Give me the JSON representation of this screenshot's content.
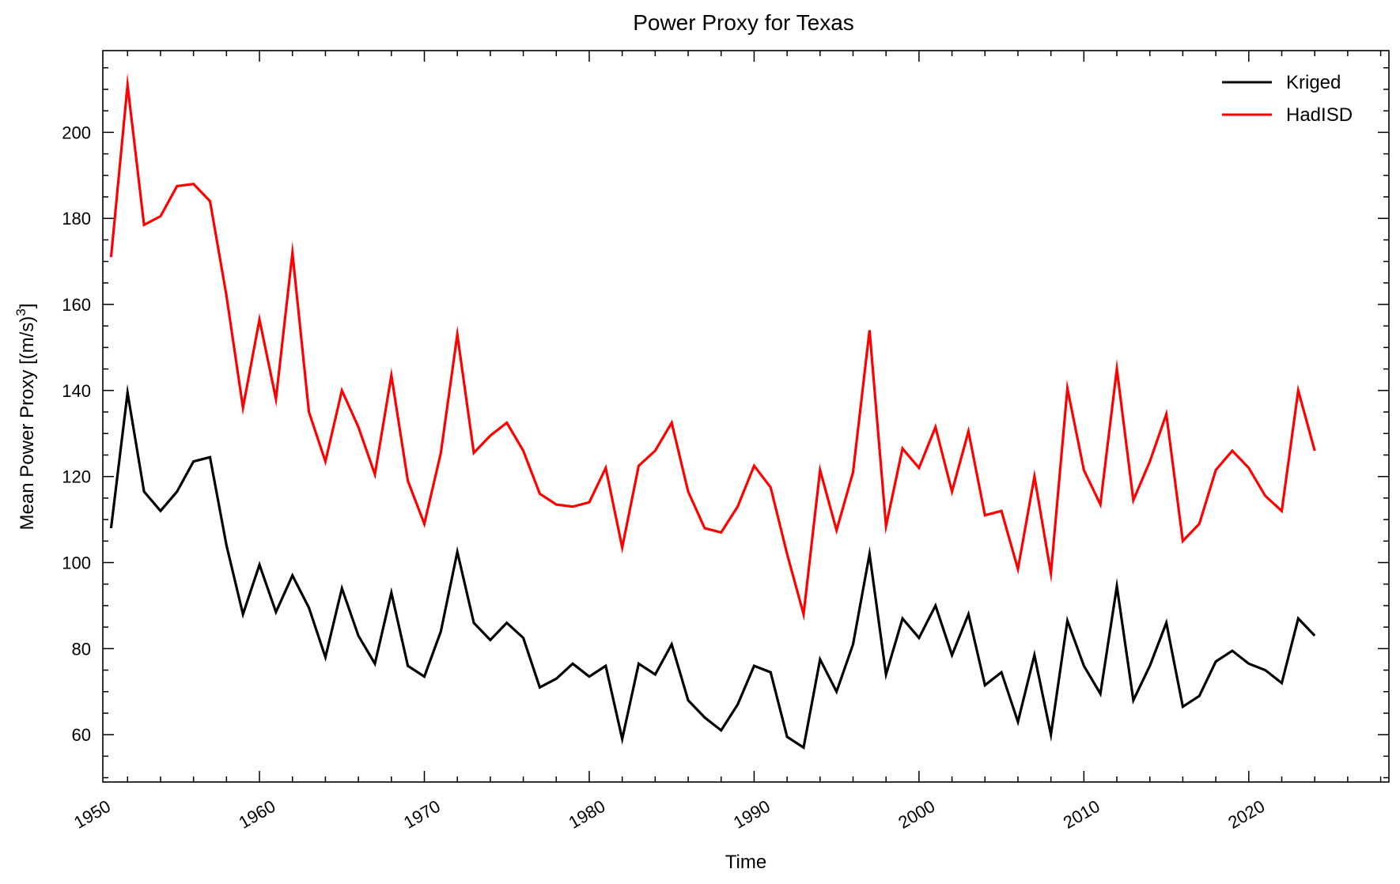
{
  "chart_data": {
    "type": "line",
    "title": "Power Proxy for Texas",
    "xlabel": "Time",
    "ylabel": "Mean Power Proxy [(m/s)",
    "ylabel_superscript": "3",
    "ylabel_suffix": "]",
    "xlim": [
      1950.5,
      2028.5
    ],
    "ylim": [
      49,
      219
    ],
    "x_ticks": [
      1950,
      1960,
      1970,
      1980,
      1990,
      2000,
      2010,
      2020
    ],
    "y_ticks": [
      60,
      80,
      100,
      120,
      140,
      160,
      180,
      200
    ],
    "legend_position": "top-right",
    "grid": false,
    "x": [
      1951,
      1952,
      1953,
      1954,
      1955,
      1956,
      1957,
      1958,
      1959,
      1960,
      1961,
      1962,
      1963,
      1964,
      1965,
      1966,
      1967,
      1968,
      1969,
      1970,
      1971,
      1972,
      1973,
      1974,
      1975,
      1976,
      1977,
      1978,
      1979,
      1980,
      1981,
      1982,
      1983,
      1984,
      1985,
      1986,
      1987,
      1988,
      1989,
      1990,
      1991,
      1992,
      1993,
      1994,
      1995,
      1996,
      1997,
      1998,
      1999,
      2000,
      2001,
      2002,
      2003,
      2004,
      2005,
      2006,
      2007,
      2008,
      2009,
      2010,
      2011,
      2012,
      2013,
      2014,
      2015,
      2016,
      2017,
      2018,
      2019,
      2020,
      2021,
      2022,
      2023,
      2024
    ],
    "series": [
      {
        "name": "Kriged",
        "color": "#000000",
        "values": [
          108,
          139.5,
          116.5,
          112,
          116.5,
          123.5,
          124.5,
          104,
          88,
          99.5,
          88.5,
          97,
          89.5,
          78,
          94,
          83,
          76.5,
          93,
          76,
          73.5,
          84,
          102.5,
          86,
          82,
          86,
          82.5,
          71,
          73,
          76.5,
          73.5,
          76,
          59,
          76.5,
          74,
          81,
          68,
          64,
          61,
          67,
          76,
          74.5,
          59.5,
          57,
          77.5,
          70,
          81,
          102,
          74,
          87,
          82.5,
          90,
          78.5,
          88,
          71.5,
          74.5,
          63,
          78.5,
          60,
          86.5,
          76,
          69.5,
          94.5,
          68,
          76,
          86,
          66.5,
          69,
          77,
          79.5,
          76.5,
          75,
          72,
          87,
          83
        ]
      },
      {
        "name": "HadISD",
        "color": "#ff0000",
        "values": [
          171,
          211,
          178.5,
          180.5,
          187.5,
          188,
          184,
          162,
          136,
          156.5,
          138,
          172,
          135,
          123.5,
          140,
          131.5,
          120.5,
          143.5,
          119,
          109,
          125.5,
          153,
          125.5,
          129.5,
          132.5,
          126,
          116,
          113.5,
          113,
          114,
          122,
          103.5,
          122.5,
          126,
          132.5,
          116.5,
          108,
          107,
          113,
          122.5,
          117.5,
          102,
          88,
          121.5,
          107.5,
          121,
          154,
          108.5,
          126.5,
          122,
          131.5,
          116.5,
          130.5,
          111,
          112,
          98.5,
          120,
          97.5,
          140.5,
          121.5,
          113.5,
          145,
          114.5,
          123.5,
          134.5,
          105,
          109,
          121.5,
          126,
          122,
          115.5,
          112,
          140,
          126
        ]
      }
    ]
  }
}
